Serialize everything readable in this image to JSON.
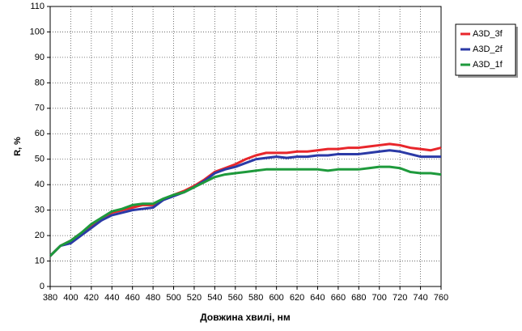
{
  "chart_data": {
    "type": "line",
    "x_label": "Довжина хвилі, нм",
    "y_label": "R, %",
    "x": [
      380,
      390,
      400,
      410,
      420,
      430,
      440,
      450,
      460,
      470,
      480,
      490,
      500,
      510,
      520,
      530,
      540,
      550,
      560,
      570,
      580,
      590,
      600,
      610,
      620,
      630,
      640,
      650,
      660,
      670,
      680,
      690,
      700,
      710,
      720,
      730,
      740,
      750,
      760
    ],
    "series": [
      {
        "name": "A3D_3f",
        "color": "#e8262b",
        "values": [
          12,
          16,
          18,
          21,
          24,
          27,
          29,
          30,
          31,
          32,
          32,
          34,
          36,
          37.5,
          39.5,
          42,
          45,
          46.5,
          48,
          50,
          51.5,
          52.5,
          52.5,
          52.5,
          53,
          53,
          53.5,
          54,
          54,
          54.5,
          54.5,
          55,
          55.5,
          56,
          55.5,
          54.5,
          54,
          53.5,
          54.5
        ]
      },
      {
        "name": "A3D_2f",
        "color": "#2b3aa6",
        "values": [
          12,
          16,
          17,
          20,
          23,
          26,
          28,
          29,
          30,
          30.5,
          31,
          34,
          35.5,
          37,
          39,
          41.5,
          44.5,
          46,
          47,
          48.5,
          50,
          50.5,
          51,
          50.5,
          51,
          51,
          51.5,
          51.5,
          52,
          52,
          52,
          52.5,
          53,
          53.5,
          53,
          52,
          51,
          51,
          51
        ]
      },
      {
        "name": "A3D_1f",
        "color": "#1e9a3c",
        "values": [
          12,
          16,
          18,
          21,
          24.5,
          27,
          29.5,
          30.5,
          32,
          32.5,
          32.5,
          34.5,
          36,
          37,
          39,
          41,
          43,
          44,
          44.5,
          45,
          45.5,
          46,
          46,
          46,
          46,
          46,
          46,
          45.5,
          46,
          46,
          46,
          46.5,
          47,
          47,
          46.5,
          45,
          44.5,
          44.5,
          44
        ]
      }
    ],
    "xlim": [
      380,
      760
    ],
    "xticks": [
      380,
      400,
      420,
      440,
      460,
      480,
      500,
      520,
      540,
      560,
      580,
      600,
      620,
      640,
      660,
      680,
      700,
      720,
      740,
      760
    ],
    "ylim": [
      0,
      110
    ],
    "yticks": [
      0,
      10,
      20,
      30,
      40,
      50,
      60,
      70,
      80,
      90,
      100,
      110
    ],
    "grid": true,
    "legend": "right"
  }
}
